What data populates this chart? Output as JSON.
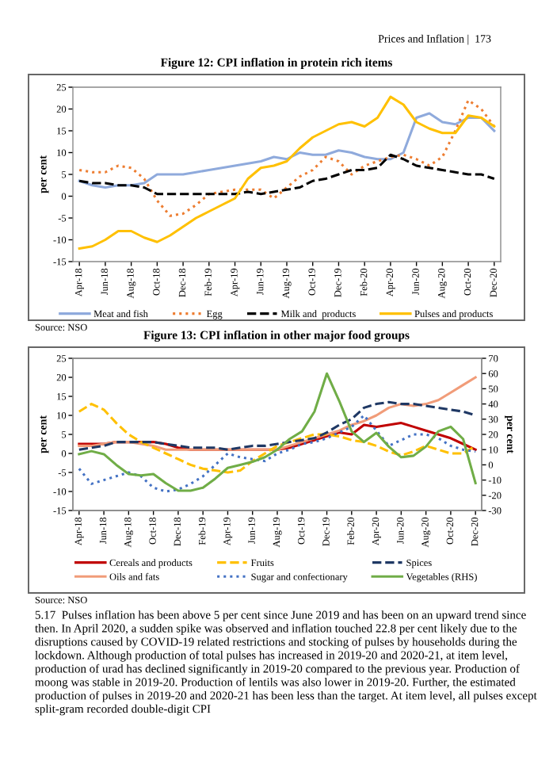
{
  "chart_data": [
    {
      "type": "line",
      "title": "Figure 12: CPI inflation in protein rich items",
      "ylabel": "per cent",
      "categories": [
        "Apr-18",
        null,
        "Jun-18",
        null,
        "Aug-18",
        null,
        "Oct-18",
        null,
        "Dec-18",
        null,
        "Feb-19",
        null,
        "Apr-19",
        null,
        "Jun-19",
        null,
        "Aug-19",
        null,
        "Oct-19",
        null,
        "Dec-19",
        null,
        "Feb-20",
        null,
        "Apr-20",
        null,
        "Jun-20",
        null,
        "Aug-20",
        null,
        "Oct-20",
        null,
        "Dec-20"
      ],
      "series": [
        {
          "name": "Meat and fish",
          "color": "#8faadc",
          "line_style": "solid",
          "values": [
            3.5,
            2.5,
            2,
            2.5,
            2.5,
            3,
            5,
            5,
            5,
            5.5,
            6,
            6.5,
            7,
            7.5,
            8,
            9,
            8.5,
            10,
            9.5,
            9.5,
            10.5,
            10,
            9,
            8.5,
            8.5,
            10,
            18,
            19,
            17,
            16.5,
            18,
            18,
            15
          ]
        },
        {
          "name": "Egg",
          "color": "#ed7d31",
          "line_style": "dotted",
          "values": [
            6,
            5.5,
            5.5,
            7,
            6.5,
            4,
            -1,
            -4.5,
            -4,
            -2,
            0.5,
            1,
            1.5,
            1.5,
            1.5,
            -0.5,
            2,
            4.5,
            6,
            9,
            8,
            5,
            7,
            8,
            9,
            9.5,
            8.5,
            7,
            9,
            15,
            22,
            20,
            16
          ]
        },
        {
          "name": "Milk and  products",
          "color": "#000000",
          "line_style": "dashed",
          "values": [
            3.5,
            3,
            3,
            2.5,
            2.5,
            2,
            0.5,
            0.5,
            0.5,
            0.5,
            0.5,
            0.5,
            0.5,
            1,
            0.5,
            1,
            1.5,
            2,
            3.5,
            4,
            5,
            6,
            6,
            6.5,
            9.5,
            8.5,
            7,
            6.5,
            6,
            5.5,
            5,
            5,
            4
          ]
        },
        {
          "name": "Pulses and products",
          "color": "#ffc000",
          "line_style": "solid",
          "values": [
            -12,
            -11.5,
            -10,
            -8,
            -8,
            -9.5,
            -10.5,
            -9,
            -7,
            -5,
            -3.5,
            -2,
            -0.5,
            4,
            6.5,
            7,
            8,
            11,
            13.5,
            15,
            16.5,
            17,
            16,
            18,
            22.8,
            21,
            17,
            15.5,
            14.5,
            14.5,
            18.5,
            18,
            16
          ]
        }
      ],
      "ylim": [
        -15,
        25
      ],
      "yticks": [
        -15,
        -10,
        -5,
        0,
        5,
        10,
        15,
        20,
        25
      ],
      "legend": "bottom",
      "annotations": [
        "Prices and Inflation |  173",
        "Source: NSO"
      ]
    },
    {
      "type": "line",
      "title": "Figure 13: CPI inflation in other major food groups",
      "ylabel": "per cent",
      "y2label": "per cent",
      "categories": [
        "Apr-18",
        null,
        "Jun-18",
        null,
        "Aug-18",
        null,
        "Oct-18",
        null,
        "Dec-18",
        null,
        "Feb-19",
        null,
        "Apr-19",
        null,
        "Jun-19",
        null,
        "Aug-19",
        null,
        "Oct-19",
        null,
        "Dec-19",
        null,
        "Feb-20",
        null,
        "Apr-20",
        null,
        "Jun-20",
        null,
        "Aug-20",
        null,
        "Oct-20",
        null,
        "Dec-20"
      ],
      "series": [
        {
          "name": "Cereals and products",
          "color": "#c00000",
          "line_style": "solid",
          "values": [
            2.5,
            2.5,
            2.5,
            3,
            3,
            3,
            3,
            2.5,
            1.5,
            1,
            1,
            1,
            1,
            1,
            1,
            1,
            1,
            1.5,
            2.5,
            3.5,
            4.5,
            5.5,
            5,
            7.5,
            7,
            7.5,
            8,
            7,
            6,
            5,
            4,
            2.5,
            1
          ]
        },
        {
          "name": "Oils and fats",
          "color": "#f19c79",
          "line_style": "solid",
          "values": [
            2,
            2,
            2.5,
            3,
            3,
            2.5,
            2,
            1,
            1,
            1,
            1,
            1,
            1,
            1,
            1,
            1,
            1,
            2,
            3,
            4,
            5,
            6,
            7.5,
            8.5,
            10,
            12,
            13,
            12.5,
            13,
            14,
            16,
            18,
            20
          ]
        },
        {
          "name": "Fruits",
          "color": "#ffc000",
          "line_style": "dashed",
          "values": [
            11,
            13,
            11.5,
            8,
            5,
            3,
            1.5,
            0,
            -1.5,
            -3,
            -4,
            -4.5,
            -5,
            -4.5,
            -2,
            0,
            2,
            3,
            4,
            5,
            5,
            4.5,
            3.5,
            3,
            2,
            0.5,
            -0.5,
            0.5,
            2,
            1,
            0,
            0,
            2
          ]
        },
        {
          "name": "Sugar and confectionary",
          "color": "#4472c4",
          "line_style": "dotted",
          "values": [
            -4,
            -8,
            -7,
            -6,
            -5,
            -6,
            -9,
            -10,
            -9.5,
            -8,
            -6,
            -3,
            0,
            -1,
            -1.5,
            -2,
            0,
            1,
            2.5,
            3,
            4,
            5.5,
            7,
            10,
            6,
            2,
            3.5,
            5,
            5,
            4,
            2,
            1,
            0.5
          ]
        },
        {
          "name": "Spices",
          "color": "#1f3864",
          "line_style": "dashed",
          "values": [
            1,
            1.5,
            2,
            3,
            3,
            3,
            3,
            2.5,
            2,
            1.5,
            1.5,
            1.5,
            1,
            1.5,
            2,
            2,
            2.5,
            3,
            3.5,
            4,
            5.5,
            7.5,
            9,
            12,
            13,
            13.5,
            13,
            13,
            12.5,
            12,
            11.5,
            11,
            10
          ]
        },
        {
          "name": "Vegetables (RHS)",
          "color": "#70ad47",
          "line_style": "solid",
          "axis": "y2",
          "values": [
            7,
            9,
            7,
            0,
            -6,
            -7,
            -6,
            -12,
            -17,
            -17,
            -15,
            -9,
            -2,
            0,
            2,
            5,
            10,
            17,
            22,
            35,
            60,
            42,
            22,
            15,
            21,
            12,
            5,
            6,
            12,
            22,
            25,
            17,
            -12
          ]
        }
      ],
      "ylim": [
        -15,
        25
      ],
      "yticks": [
        -15,
        -10,
        -5,
        0,
        5,
        10,
        15,
        20,
        25
      ],
      "y2lim": [
        -30,
        70
      ],
      "y2ticks": [
        -30,
        -20,
        -10,
        0,
        10,
        20,
        30,
        40,
        50,
        60,
        70
      ],
      "legend": "bottom",
      "annotations": [
        "Source: NSO",
        "5.17  Pulses inflation has been above 5 per cent since June 2019 and has been on an upward trend since then. In April 2020, a sudden spike was observed and inflation touched 22.8 per cent likely due to the disruptions caused by COVID-19 related restrictions and stocking of pulses by households during the lockdown. Although production of total pulses has increased in 2019-20 and 2020-21, at item level, production of urad has declined significantly in 2019-20 compared to the previous year. Production of moong was stable in 2019-20. Production of lentils was also lower in 2019-20. Further, the estimated production of pulses in 2019-20 and 2020-21 has been less than the target. At item level, all pulses except split-gram recorded double-digit CPI"
      ]
    }
  ]
}
